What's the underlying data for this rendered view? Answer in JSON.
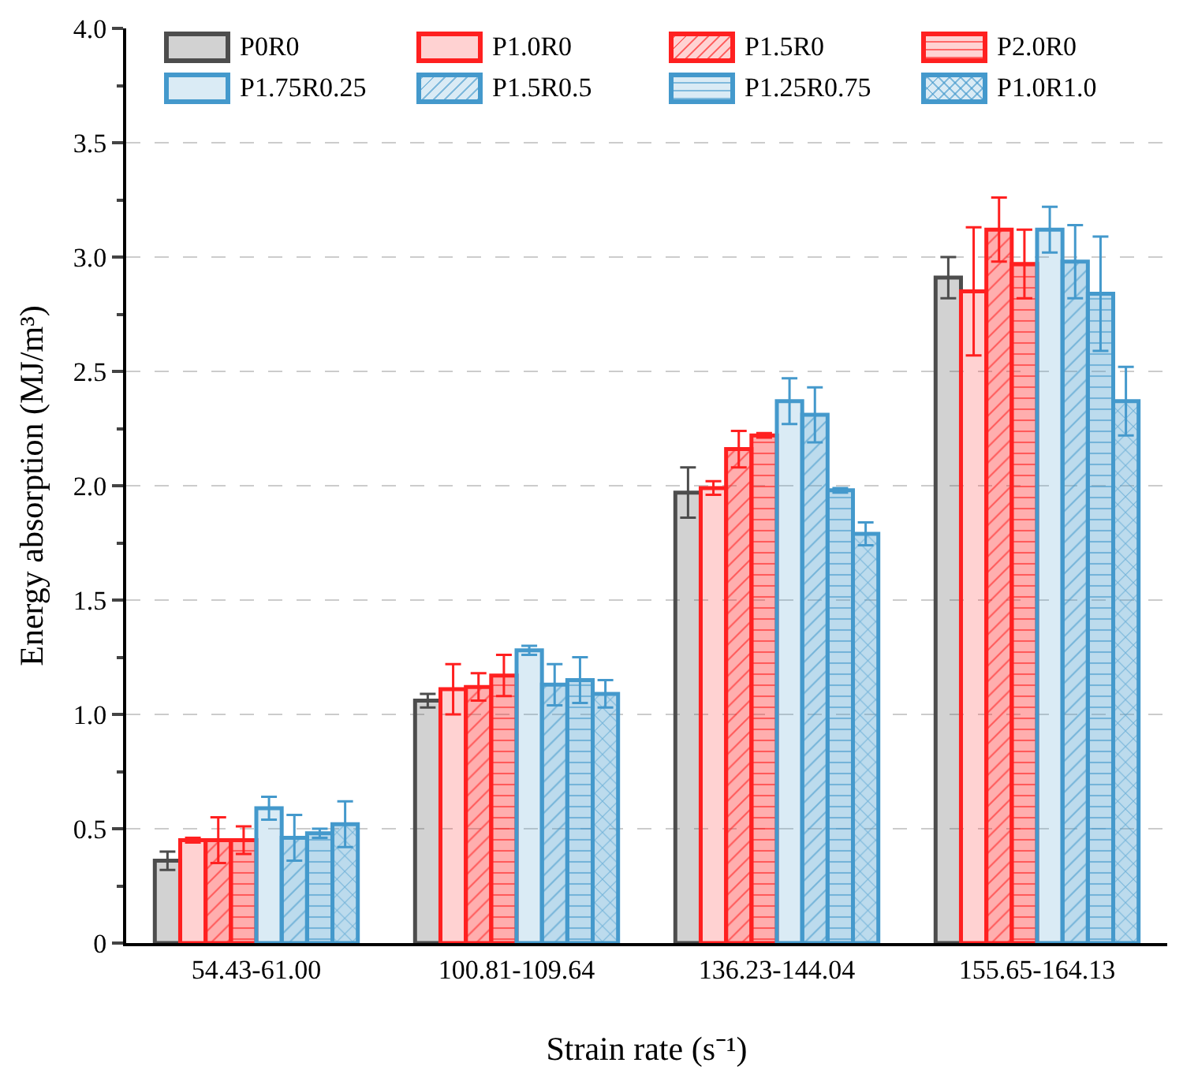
{
  "chart_data": {
    "type": "bar",
    "xlabel": "Strain rate (s⁻¹)",
    "ylabel": "Energy absorption (MJ/m³)",
    "categories": [
      "54.43-61.00",
      "100.81-109.64",
      "136.23-144.04",
      "155.65-164.13"
    ],
    "ylim": [
      0,
      4
    ],
    "yticks": [
      0,
      {
        "value": 0.5,
        "label": "0.5"
      },
      {
        "value": 1,
        "label": "1.0"
      },
      {
        "value": 1.5,
        "label": "1.5"
      },
      {
        "value": 2,
        "label": "2.0"
      },
      {
        "value": 2.5,
        "label": "2.5"
      },
      {
        "value": 3,
        "label": "3.0"
      },
      {
        "value": 3.5,
        "label": "3.5"
      },
      {
        "value": 4,
        "label": "4.0"
      }
    ],
    "grid": "y",
    "legend": "top",
    "series": [
      {
        "name": "P0R0",
        "color": "#4d4d4d",
        "values": [
          0.36,
          1.06,
          1.97,
          2.91
        ],
        "errors": [
          0.04,
          0.03,
          0.11,
          0.09
        ]
      },
      {
        "name": "P1.0R0",
        "color": "#ff2020",
        "values": [
          0.45,
          1.11,
          1.99,
          2.85
        ],
        "errors": [
          0.01,
          0.11,
          0.03,
          0.28
        ]
      },
      {
        "name": "P1.5R0",
        "color": "#ff2020",
        "values": [
          0.45,
          1.12,
          2.16,
          3.12
        ],
        "errors": [
          0.1,
          0.06,
          0.08,
          0.14
        ]
      },
      {
        "name": "P2.0R0",
        "color": "#ff2020",
        "values": [
          0.45,
          1.17,
          2.22,
          2.97
        ],
        "errors": [
          0.06,
          0.09,
          0.01,
          0.15
        ]
      },
      {
        "name": "P1.75R0.25",
        "color": "#4499cc",
        "values": [
          0.59,
          1.28,
          2.37,
          3.12
        ],
        "errors": [
          0.05,
          0.02,
          0.1,
          0.1
        ]
      },
      {
        "name": "P1.5R0.5",
        "color": "#4499cc",
        "values": [
          0.46,
          1.13,
          2.31,
          2.98
        ],
        "errors": [
          0.1,
          0.09,
          0.12,
          0.16
        ]
      },
      {
        "name": "P1.25R0.75",
        "color": "#4499cc",
        "values": [
          0.48,
          1.15,
          1.98,
          2.84
        ],
        "errors": [
          0.02,
          0.1,
          0.01,
          0.25
        ]
      },
      {
        "name": "P1.0R1.0",
        "color": "#4499cc",
        "values": [
          0.52,
          1.09,
          1.79,
          2.37
        ],
        "errors": [
          0.1,
          0.06,
          0.05,
          0.15
        ]
      }
    ]
  }
}
